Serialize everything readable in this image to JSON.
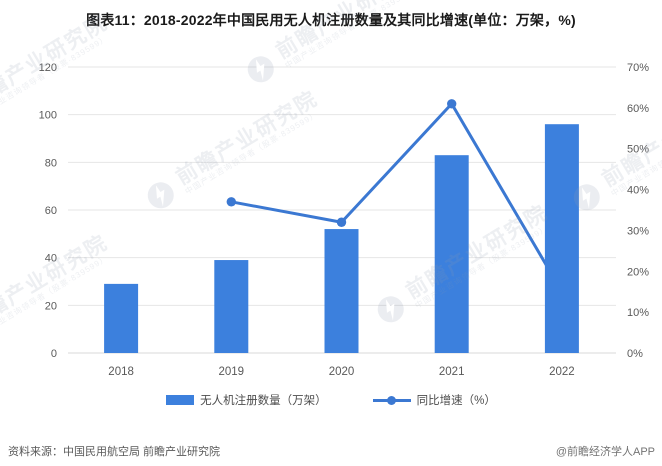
{
  "title": "图表11：2018-2022年中国民用无人机注册数量及其同比增速(单位：万架，%)",
  "chart_data": {
    "type": "bar",
    "categories": [
      "2018",
      "2019",
      "2020",
      "2021",
      "2022"
    ],
    "series": [
      {
        "name": "无人机注册数量（万架）",
        "type": "bar",
        "axis": "left",
        "values": [
          29,
          39,
          52,
          83,
          96
        ]
      },
      {
        "name": "同比增速（%）",
        "type": "line",
        "axis": "right",
        "values": [
          null,
          37,
          32,
          61,
          15
        ]
      }
    ],
    "title": "图表11：2018-2022年中国民用无人机注册数量及其同比增速(单位：万架，%)",
    "xlabel": "",
    "ylabel": "",
    "left_axis": {
      "min": 0,
      "max": 120,
      "step": 20,
      "ticks": [
        "0",
        "20",
        "40",
        "60",
        "80",
        "100",
        "120"
      ]
    },
    "right_axis": {
      "min": 0,
      "max": 70,
      "step": 10,
      "ticks": [
        "0%",
        "10%",
        "20%",
        "30%",
        "40%",
        "50%",
        "60%",
        "70%"
      ]
    },
    "grid": true,
    "legend_position": "bottom",
    "note": "2022 line marker is hidden behind the 2022 bar"
  },
  "legend": {
    "bar_label": "无人机注册数量（万架）",
    "line_label": "同比增速（%）"
  },
  "footer": {
    "source": "资料来源：中国民用航空局 前瞻产业研究院",
    "credit": "@前瞻经济学人APP"
  },
  "watermark": {
    "text": "前瞻产业研究院",
    "subtext": "中国产业咨询领导者（股票·839599）"
  },
  "colors": {
    "bar": "#3C80DD",
    "line": "#3B78D2",
    "grid": "#E6E6E6",
    "axis_line": "#D8D8D8",
    "axis_text": "#595959",
    "title_text": "#1A1A1A",
    "footer_text": "#595959",
    "watermark": "#909BAF"
  }
}
